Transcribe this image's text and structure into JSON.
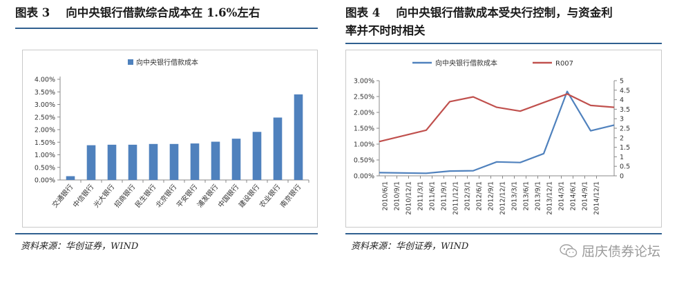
{
  "left": {
    "title": "图表 3    向中央银行借款综合成本在 1.6%左右",
    "source": "资料来源：华创证券，WIND"
  },
  "right": {
    "title": "图表 4    向中央银行借款成本受央行控制，与资金利\n率并不时时相关",
    "source": "资料来源：华创证券，WIND"
  },
  "watermark": {
    "text": "屈庆债券论坛",
    "icon": "wechat-icon"
  },
  "chart_data": [
    {
      "type": "bar",
      "title": "",
      "legend": [
        "向中央银行借款成本"
      ],
      "legend_position": "top",
      "categories": [
        "交通银行",
        "中信银行",
        "光大银行",
        "招商银行",
        "民生银行",
        "北京银行",
        "平安银行",
        "浦发银行",
        "中国银行",
        "建设银行",
        "农业银行",
        "南京银行"
      ],
      "series": [
        {
          "name": "向中央银行借款成本",
          "values": [
            0.15,
            1.38,
            1.4,
            1.4,
            1.43,
            1.43,
            1.45,
            1.52,
            1.64,
            1.91,
            2.48,
            3.4
          ],
          "color": "#4f81bd"
        }
      ],
      "yticks": [
        "0.00%",
        "0.50%",
        "1.00%",
        "1.50%",
        "2.00%",
        "2.50%",
        "3.00%",
        "3.50%",
        "4.00%"
      ],
      "ylim": [
        0,
        4.0
      ],
      "grid": false
    },
    {
      "type": "line",
      "title": "",
      "legend": [
        "向中央银行借款成本",
        "R007"
      ],
      "legend_position": "top",
      "x": [
        "2010/6/1",
        "2010/9/1",
        "2010/12/1",
        "2011/3/1",
        "2011/6/1",
        "2011/9/1",
        "2011/12/1",
        "2012/3/1",
        "2012/6/1",
        "2012/9/1",
        "2012/12/1",
        "2013/3/1",
        "2013/6/1",
        "2013/9/1",
        "2013/12/1",
        "2014/3/1",
        "2014/6/1",
        "2014/9/1",
        "2014/12/1"
      ],
      "series": [
        {
          "name": "向中央银行借款成本",
          "axis": "left",
          "color": "#4f81bd",
          "points": [
            [
              "2010/6/1",
              0.1
            ],
            [
              "2011/6/1",
              0.08
            ],
            [
              "2011/12/1",
              0.15
            ],
            [
              "2012/6/1",
              0.16
            ],
            [
              "2012/12/1",
              0.44
            ],
            [
              "2013/6/1",
              0.42
            ],
            [
              "2013/12/1",
              0.7
            ],
            [
              "2014/6/1",
              2.66
            ],
            [
              "2014/12/1",
              1.42
            ],
            [
              "2015/6/1",
              1.6
            ]
          ]
        },
        {
          "name": "R007",
          "axis": "right",
          "color": "#c0504d",
          "points": [
            [
              "2010/6/1",
              1.8
            ],
            [
              "2011/6/1",
              2.4
            ],
            [
              "2011/12/1",
              3.9
            ],
            [
              "2012/6/1",
              4.15
            ],
            [
              "2012/12/1",
              3.6
            ],
            [
              "2013/6/1",
              3.4
            ],
            [
              "2013/12/1",
              3.85
            ],
            [
              "2014/6/1",
              4.3
            ],
            [
              "2014/12/1",
              3.7
            ],
            [
              "2015/6/1",
              3.6
            ]
          ]
        }
      ],
      "y_left_ticks": [
        "0.00%",
        "0.50%",
        "1.00%",
        "1.50%",
        "2.00%",
        "2.50%",
        "3.00%"
      ],
      "y_left_lim": [
        0,
        3.0
      ],
      "y_right_ticks": [
        "0",
        "0.5",
        "1",
        "1.5",
        "2",
        "2.5",
        "3",
        "3.5",
        "4",
        "4.5",
        "5"
      ],
      "y_right_lim": [
        0,
        5
      ],
      "grid": false
    }
  ]
}
